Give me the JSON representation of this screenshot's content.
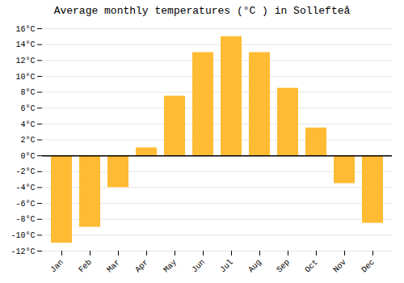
{
  "chart_data": {
    "type": "bar",
    "title": "Average monthly temperatures (°C ) in Sollefteå",
    "categories": [
      "Jan",
      "Feb",
      "Mar",
      "Apr",
      "May",
      "Jun",
      "Jul",
      "Aug",
      "Sep",
      "Oct",
      "Nov",
      "Dec"
    ],
    "values": [
      -11,
      -9,
      -4,
      1,
      7.5,
      13,
      15,
      13,
      8.5,
      3.5,
      -3.5,
      -8.5
    ],
    "color": "#FFBB33",
    "ylim": [
      -12,
      16
    ],
    "yticks": [
      {
        "value": -12,
        "label": "-12°C"
      },
      {
        "value": -10,
        "label": "-10°C"
      },
      {
        "value": -8,
        "label": "-8°C"
      },
      {
        "value": -6,
        "label": "-6°C"
      },
      {
        "value": -4,
        "label": "-4°C"
      },
      {
        "value": -2,
        "label": "-2°C"
      },
      {
        "value": 0,
        "label": "0°C"
      },
      {
        "value": 2,
        "label": "2°C"
      },
      {
        "value": 4,
        "label": "4°C"
      },
      {
        "value": 6,
        "label": "6°C"
      },
      {
        "value": 8,
        "label": "8°C"
      },
      {
        "value": 10,
        "label": "10°C"
      },
      {
        "value": 12,
        "label": "12°C"
      },
      {
        "value": 14,
        "label": "14°C"
      },
      {
        "value": 16,
        "label": "16°C"
      }
    ],
    "grid": true
  }
}
